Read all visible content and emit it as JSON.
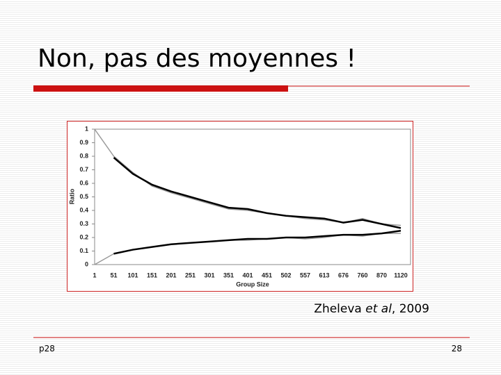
{
  "slide": {
    "title": "Non, pas des moyennes !",
    "caption": {
      "author": "Zheleva",
      "etal": "et al",
      "year": ", 2009"
    },
    "footer_left": "p28",
    "page_number": "28"
  },
  "chart_data": {
    "type": "line",
    "ylabel": "Ratio",
    "xlabel": "Group Size",
    "categories": [
      "1",
      "51",
      "101",
      "151",
      "201",
      "251",
      "301",
      "351",
      "401",
      "451",
      "502",
      "557",
      "613",
      "676",
      "760",
      "870",
      "1120"
    ],
    "series": [
      {
        "color": "#999999",
        "values": [
          1.0,
          0.8,
          0.68,
          0.58,
          0.53,
          0.49,
          0.45,
          0.41,
          0.4,
          0.38,
          0.36,
          0.34,
          0.33,
          0.31,
          0.34,
          0.3,
          0.29
        ]
      },
      {
        "color": "#999999",
        "values": [
          0,
          0.08,
          0.11,
          0.13,
          0.15,
          0.16,
          0.17,
          0.18,
          0.18,
          0.19,
          0.2,
          0.19,
          0.2,
          0.22,
          0.21,
          0.23,
          0.23
        ]
      },
      {
        "color": "#000000",
        "values": [
          null,
          0.79,
          0.67,
          0.59,
          0.54,
          0.5,
          0.46,
          0.42,
          0.41,
          0.38,
          0.36,
          0.35,
          0.34,
          0.31,
          0.33,
          0.3,
          0.27
        ]
      },
      {
        "color": "#000000",
        "values": [
          null,
          0.08,
          0.11,
          0.13,
          0.15,
          0.16,
          0.17,
          0.18,
          0.19,
          0.19,
          0.2,
          0.2,
          0.21,
          0.22,
          0.22,
          0.23,
          0.25
        ]
      }
    ],
    "ylim": [
      0,
      1
    ],
    "yticks": [
      0,
      0.1,
      0.2,
      0.3,
      0.4,
      0.5,
      0.6,
      0.7,
      0.8,
      0.9,
      1
    ]
  }
}
